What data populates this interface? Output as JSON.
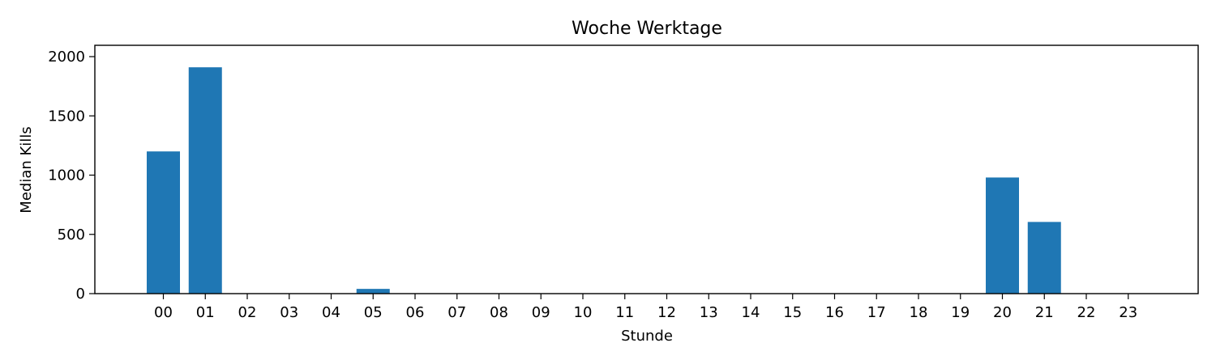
{
  "chart_data": {
    "type": "bar",
    "title": "Woche Werktage",
    "xlabel": "Stunde",
    "ylabel": "Median Kills",
    "categories": [
      "00",
      "01",
      "02",
      "03",
      "04",
      "05",
      "06",
      "07",
      "08",
      "09",
      "10",
      "11",
      "12",
      "13",
      "14",
      "15",
      "16",
      "17",
      "18",
      "19",
      "20",
      "21",
      "22",
      "23"
    ],
    "values": [
      1200,
      1910,
      0,
      0,
      0,
      40,
      0,
      0,
      0,
      0,
      0,
      0,
      0,
      0,
      0,
      0,
      0,
      0,
      0,
      0,
      980,
      605,
      0,
      0
    ],
    "ylim": [
      0,
      2000
    ],
    "yticks": [
      0,
      500,
      1000,
      1500,
      2000
    ],
    "grid": false,
    "bar_color": "#1f77b4"
  }
}
